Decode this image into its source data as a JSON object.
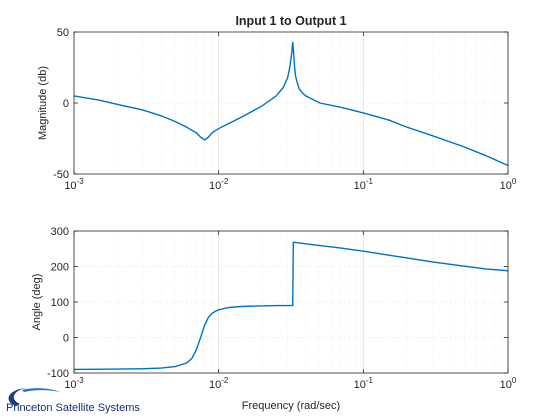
{
  "chart_data": [
    {
      "type": "line",
      "title": "Input 1 to Output 1",
      "xlabel": "",
      "ylabel": "Magnitude (db)",
      "xscale": "log",
      "xlim": [
        0.001,
        1
      ],
      "ylim": [
        -50,
        50
      ],
      "grid": true,
      "xticks": [
        0.001,
        0.01,
        0.1,
        1
      ],
      "xtick_labels": [
        {
          "base": "10",
          "exp": "-3"
        },
        {
          "base": "10",
          "exp": "-2"
        },
        {
          "base": "10",
          "exp": "-1"
        },
        {
          "base": "10",
          "exp": "0"
        }
      ],
      "yticks": [
        -50,
        0,
        50
      ],
      "ytick_labels": [
        "-50",
        "0",
        "50"
      ],
      "color": "#0072BD",
      "series": [
        {
          "x": [
            0.001,
            0.0015,
            0.002,
            0.003,
            0.004,
            0.005,
            0.006,
            0.007,
            0.0075,
            0.008,
            0.0085,
            0.009,
            0.01,
            0.012,
            0.015,
            0.02,
            0.025,
            0.028,
            0.03,
            0.031,
            0.032,
            0.0325,
            0.033,
            0.0335,
            0.034,
            0.035,
            0.036,
            0.038,
            0.04,
            0.05,
            0.07,
            0.1,
            0.15,
            0.2,
            0.3,
            0.5,
            0.7,
            1.0
          ],
          "y": [
            5,
            2,
            -1,
            -5,
            -9,
            -13,
            -17,
            -21,
            -24,
            -26,
            -24,
            -21,
            -18,
            -14,
            -9,
            -2,
            5,
            11,
            18,
            25,
            35,
            43,
            35,
            25,
            19,
            14,
            10,
            7,
            5,
            0,
            -3,
            -7,
            -12,
            -17,
            -23,
            -31,
            -37,
            -44
          ]
        }
      ]
    },
    {
      "type": "line",
      "title": "",
      "xlabel": "Frequency (rad/sec)",
      "ylabel": "Angle (deg)",
      "xscale": "log",
      "xlim": [
        0.001,
        1
      ],
      "ylim": [
        -100,
        300
      ],
      "grid": true,
      "xticks": [
        0.001,
        0.01,
        0.1,
        1
      ],
      "xtick_labels": [
        {
          "base": "10",
          "exp": "-3"
        },
        {
          "base": "10",
          "exp": "-2"
        },
        {
          "base": "10",
          "exp": "-1"
        },
        {
          "base": "10",
          "exp": "0"
        }
      ],
      "yticks": [
        -100,
        0,
        100,
        200,
        300
      ],
      "ytick_labels": [
        "-100",
        "0",
        "100",
        "200",
        "300"
      ],
      "color": "#0072BD",
      "series": [
        {
          "x": [
            0.001,
            0.002,
            0.003,
            0.004,
            0.005,
            0.006,
            0.0065,
            0.007,
            0.0075,
            0.008,
            0.0085,
            0.009,
            0.0095,
            0.01,
            0.011,
            0.012,
            0.014,
            0.016,
            0.02,
            0.025,
            0.03,
            0.0325,
            0.0328,
            0.033,
            0.035,
            0.04,
            0.05,
            0.07,
            0.1,
            0.15,
            0.2,
            0.3,
            0.5,
            0.7,
            1.0
          ],
          "y": [
            -90,
            -89,
            -88,
            -86,
            -82,
            -72,
            -60,
            -35,
            0,
            35,
            57,
            68,
            74,
            78,
            82,
            85,
            87,
            88,
            89,
            90,
            90,
            90,
            268,
            268,
            267,
            264,
            259,
            252,
            243,
            232,
            224,
            213,
            201,
            193,
            188
          ]
        }
      ]
    }
  ],
  "logo": {
    "text": "Princeton Satellite Systems"
  }
}
